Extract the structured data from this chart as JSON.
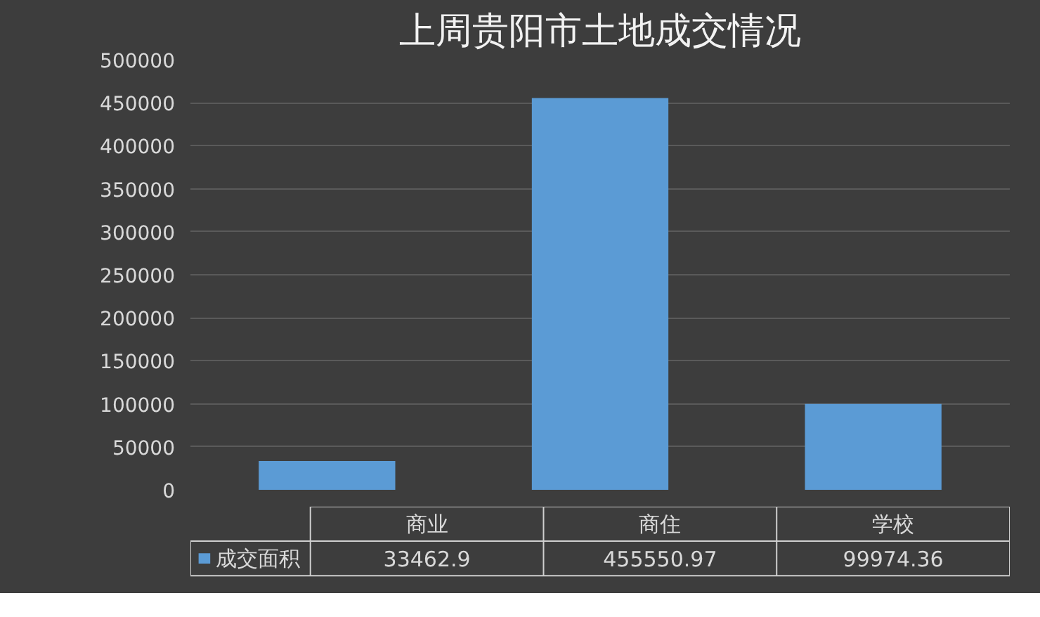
{
  "chart_data": {
    "type": "bar",
    "title": "上周贵阳市土地成交情况",
    "categories": [
      "商业",
      "商住",
      "学校"
    ],
    "series": [
      {
        "name": "成交面积",
        "color": "#5b9bd5",
        "values": [
          33462.9,
          455550.97,
          99974.36
        ]
      }
    ],
    "ylim": [
      0,
      500000
    ],
    "yticks": [
      0,
      50000,
      100000,
      150000,
      200000,
      250000,
      300000,
      350000,
      400000,
      450000,
      500000
    ],
    "grid": "y",
    "data_labels": true,
    "legend": "bottom"
  }
}
